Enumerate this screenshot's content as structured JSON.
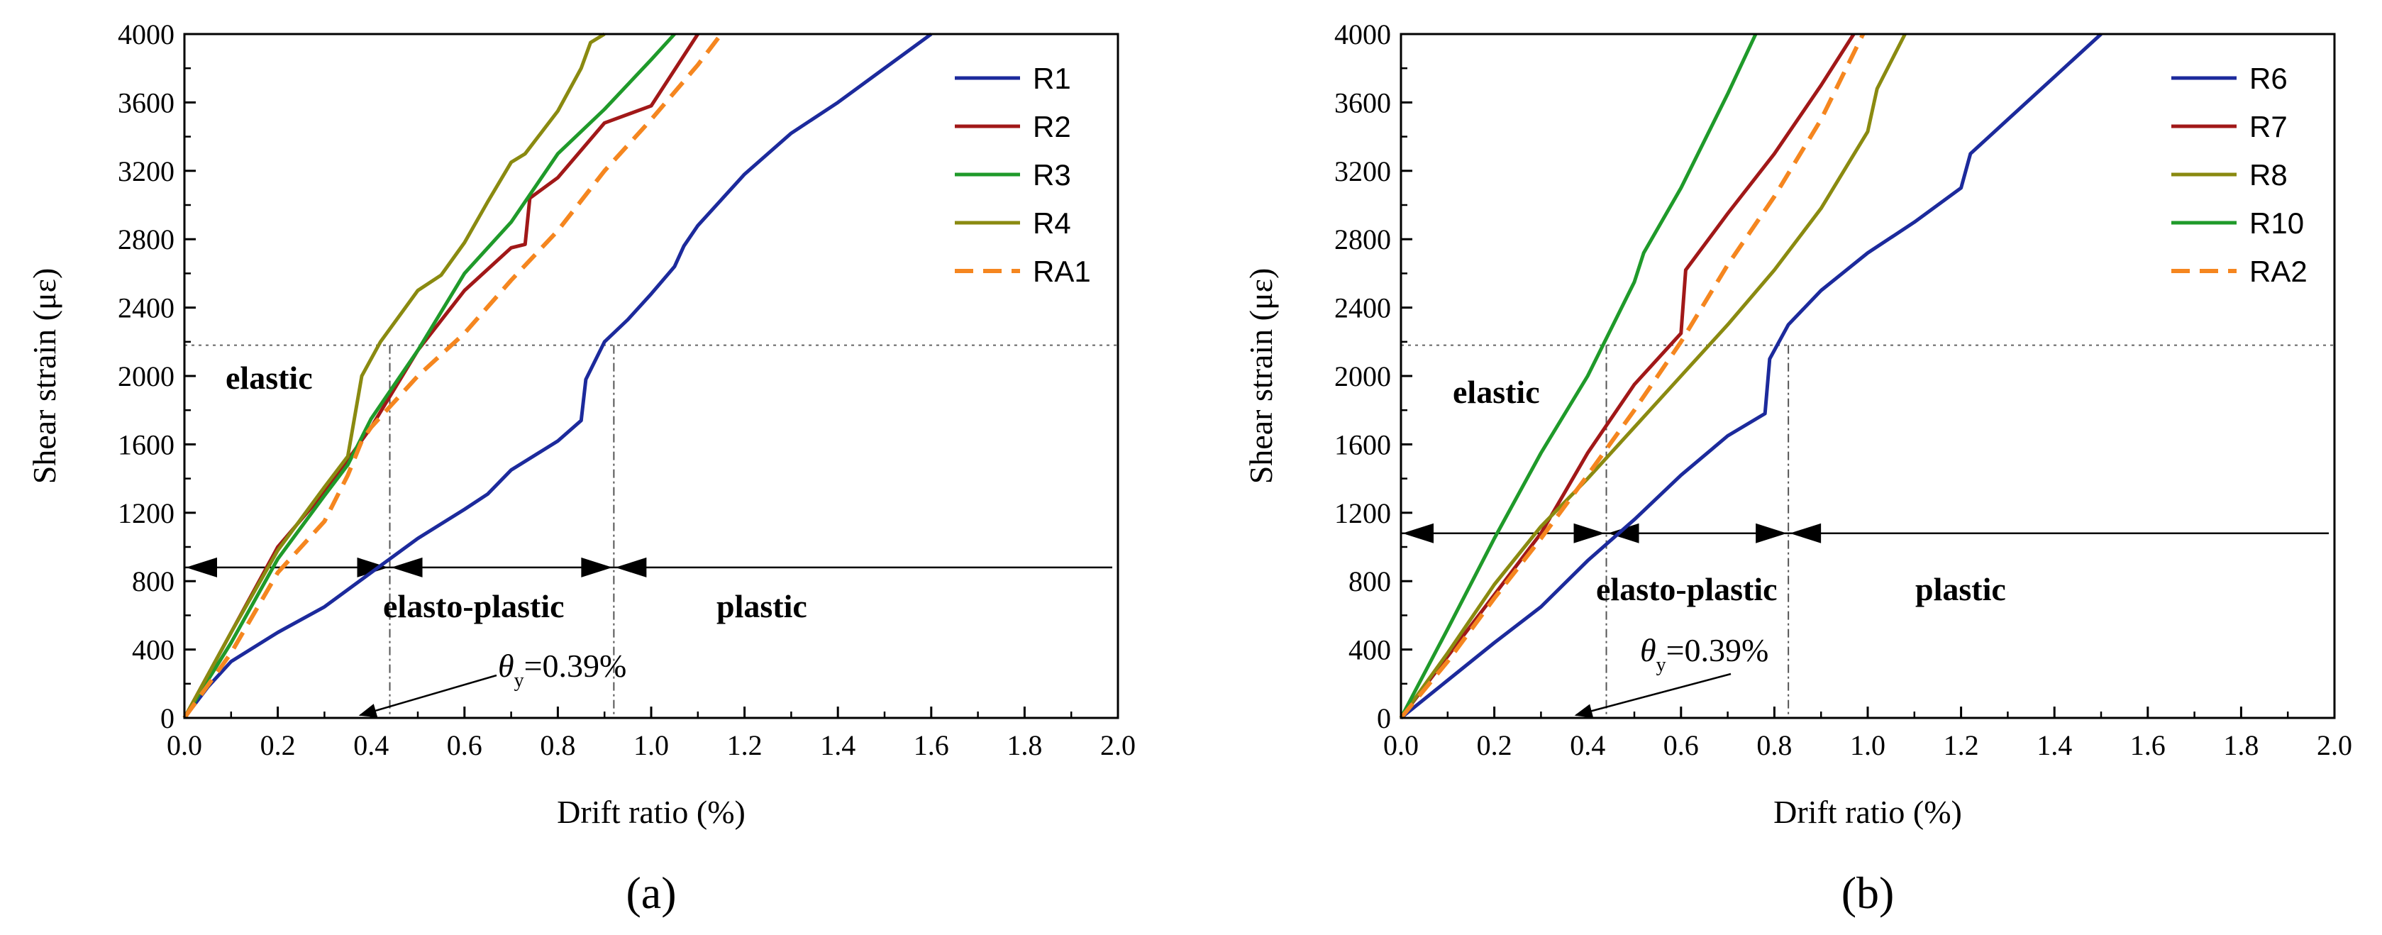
{
  "chart_data": [
    {
      "type": "line",
      "panel_label": "(a)",
      "xlabel": "Drift ratio (%)",
      "ylabel": "Shear strain (με)",
      "xlim": [
        0,
        2.0
      ],
      "ylim": [
        0,
        4000
      ],
      "xticks": [
        "0.0",
        "0.2",
        "0.4",
        "0.6",
        "0.8",
        "1.0",
        "1.2",
        "1.4",
        "1.6",
        "1.8",
        "2.0"
      ],
      "yticks": [
        "0",
        "400",
        "800",
        "1200",
        "1600",
        "2000",
        "2400",
        "2800",
        "3200",
        "3600",
        "4000"
      ],
      "legend_position": "top-right",
      "series": [
        {
          "name": "R1",
          "color": "#1c2a9c",
          "dash": false,
          "x": [
            0,
            0.05,
            0.1,
            0.2,
            0.3,
            0.4,
            0.5,
            0.6,
            0.65,
            0.7,
            0.8,
            0.85,
            0.86,
            0.9,
            0.95,
            1.0,
            1.05,
            1.07,
            1.1,
            1.2,
            1.3,
            1.4,
            1.5,
            1.6
          ],
          "y": [
            0,
            180,
            330,
            500,
            650,
            850,
            1050,
            1220,
            1310,
            1450,
            1620,
            1740,
            1980,
            2200,
            2330,
            2480,
            2640,
            2760,
            2880,
            3180,
            3420,
            3600,
            3800,
            4000
          ]
        },
        {
          "name": "R2",
          "color": "#a11818",
          "dash": false,
          "x": [
            0,
            0.1,
            0.2,
            0.3,
            0.4,
            0.5,
            0.6,
            0.7,
            0.73,
            0.74,
            0.8,
            0.9,
            1.0,
            1.1
          ],
          "y": [
            0,
            500,
            1000,
            1320,
            1700,
            2150,
            2500,
            2750,
            2770,
            3040,
            3160,
            3480,
            3580,
            4000
          ]
        },
        {
          "name": "R3",
          "color": "#1f9a2a",
          "dash": false,
          "x": [
            0,
            0.1,
            0.2,
            0.3,
            0.35,
            0.4,
            0.5,
            0.6,
            0.7,
            0.8,
            0.9,
            1.0,
            1.05
          ],
          "y": [
            0,
            440,
            930,
            1300,
            1480,
            1750,
            2150,
            2600,
            2900,
            3300,
            3560,
            3850,
            4000
          ]
        },
        {
          "name": "R4",
          "color": "#8a8a10",
          "dash": false,
          "x": [
            0,
            0.1,
            0.2,
            0.3,
            0.35,
            0.38,
            0.42,
            0.5,
            0.55,
            0.6,
            0.65,
            0.7,
            0.73,
            0.8,
            0.85,
            0.87,
            0.9
          ],
          "y": [
            0,
            500,
            980,
            1350,
            1530,
            2000,
            2200,
            2500,
            2590,
            2780,
            3020,
            3250,
            3300,
            3550,
            3800,
            3950,
            4000
          ]
        },
        {
          "name": "RA1",
          "color": "#f5861f",
          "dash": true,
          "x": [
            0,
            0.1,
            0.2,
            0.3,
            0.35,
            0.38,
            0.4,
            0.5,
            0.6,
            0.7,
            0.8,
            0.9,
            1.0,
            1.1,
            1.15
          ],
          "y": [
            0,
            380,
            850,
            1150,
            1420,
            1620,
            1700,
            2000,
            2250,
            2560,
            2850,
            3200,
            3500,
            3820,
            4000
          ]
        }
      ],
      "regions": [
        "elastic",
        "elasto-plastic",
        "plastic"
      ],
      "annotation": "θy=0.39%",
      "reference_lines": {
        "y_dotted": 2180,
        "x_dashdot": [
          0.44,
          0.92
        ],
        "arrow_y": 880
      }
    },
    {
      "type": "line",
      "panel_label": "(b)",
      "xlabel": "Drift ratio (%)",
      "ylabel": "Shear strain (με)",
      "xlim": [
        0,
        2.0
      ],
      "ylim": [
        0,
        4000
      ],
      "xticks": [
        "0.0",
        "0.2",
        "0.4",
        "0.6",
        "0.8",
        "1.0",
        "1.2",
        "1.4",
        "1.6",
        "1.8",
        "2.0"
      ],
      "yticks": [
        "0",
        "400",
        "800",
        "1200",
        "1600",
        "2000",
        "2400",
        "2800",
        "3200",
        "3600",
        "4000"
      ],
      "legend_position": "top-right",
      "series": [
        {
          "name": "R6",
          "color": "#1c2a9c",
          "dash": false,
          "x": [
            0,
            0.1,
            0.2,
            0.3,
            0.4,
            0.5,
            0.6,
            0.7,
            0.78,
            0.79,
            0.83,
            0.9,
            1.0,
            1.1,
            1.2,
            1.22,
            1.3,
            1.4,
            1.5
          ],
          "y": [
            0,
            220,
            440,
            650,
            920,
            1160,
            1420,
            1650,
            1780,
            2100,
            2300,
            2500,
            2720,
            2900,
            3100,
            3300,
            3500,
            3750,
            4000
          ]
        },
        {
          "name": "R7",
          "color": "#a11818",
          "dash": false,
          "x": [
            0,
            0.1,
            0.2,
            0.3,
            0.4,
            0.5,
            0.6,
            0.61,
            0.7,
            0.8,
            0.9,
            0.97
          ],
          "y": [
            0,
            360,
            720,
            1080,
            1550,
            1950,
            2250,
            2620,
            2950,
            3300,
            3700,
            4000
          ]
        },
        {
          "name": "R8",
          "color": "#8a8a10",
          "dash": false,
          "x": [
            0,
            0.1,
            0.2,
            0.3,
            0.4,
            0.5,
            0.6,
            0.7,
            0.8,
            0.9,
            1.0,
            1.02,
            1.08
          ],
          "y": [
            0,
            380,
            780,
            1120,
            1400,
            1700,
            2000,
            2300,
            2620,
            2980,
            3430,
            3680,
            4000
          ]
        },
        {
          "name": "R10",
          "color": "#1f9a2a",
          "dash": false,
          "x": [
            0,
            0.1,
            0.2,
            0.3,
            0.4,
            0.5,
            0.52,
            0.6,
            0.7,
            0.76
          ],
          "y": [
            0,
            520,
            1050,
            1550,
            2000,
            2550,
            2720,
            3100,
            3650,
            4000
          ]
        },
        {
          "name": "RA2",
          "color": "#f5861f",
          "dash": true,
          "x": [
            0,
            0.1,
            0.2,
            0.3,
            0.4,
            0.5,
            0.6,
            0.7,
            0.8,
            0.9,
            0.99
          ],
          "y": [
            0,
            330,
            700,
            1050,
            1420,
            1800,
            2200,
            2650,
            3050,
            3500,
            4000
          ]
        }
      ],
      "regions": [
        "elastic",
        "elasto-plastic",
        "plastic"
      ],
      "annotation": "θy=0.39%",
      "reference_lines": {
        "y_dotted": 2180,
        "x_dashdot": [
          0.44,
          0.83
        ],
        "arrow_y": 1080
      }
    }
  ]
}
